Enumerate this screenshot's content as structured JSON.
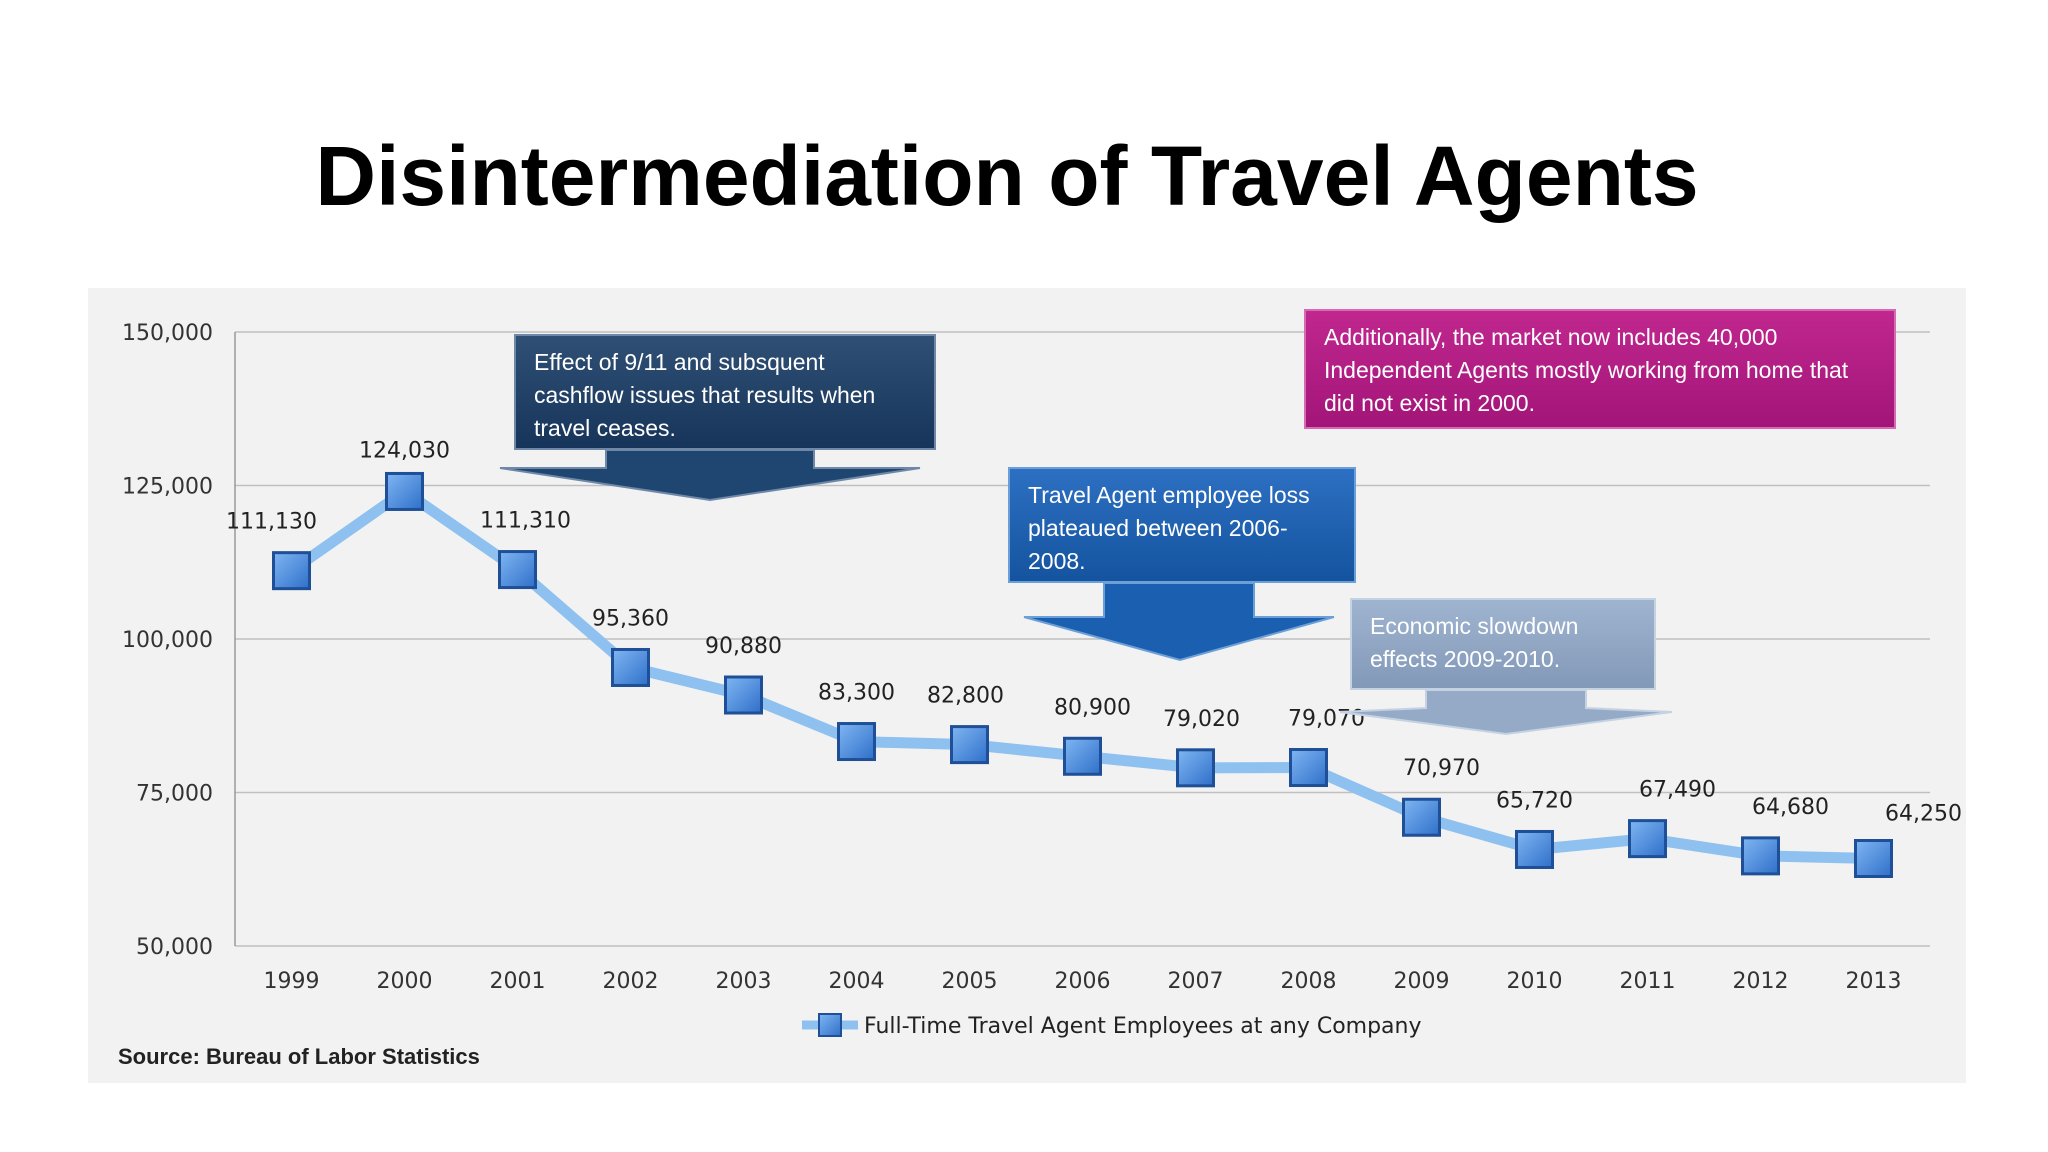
{
  "slide": {
    "title": "Disintermediation of Travel Agents",
    "source": "Source: Bureau of Labor Statistics"
  },
  "callouts": {
    "sept11": "Effect of  9/11 and subsquent cashflow issues that results when travel ceases.",
    "plateau": "Travel Agent employee loss plateaued between 2006-2008.",
    "slowdown": "Economic slowdown effects 2009-2010.",
    "independent": "Additionally, the market now includes 40,000 Independent Agents mostly working from home that did not exist in 2000."
  },
  "colors": {
    "line": "#8ec1f0",
    "marker": "#3a7fd8",
    "marker_edge": "#1f4f96",
    "grid": "#bfbfbf",
    "panel": "#f2f2f2"
  },
  "chart_data": {
    "type": "line",
    "title": "",
    "xlabel": "",
    "ylabel": "",
    "categories": [
      "1999",
      "2000",
      "2001",
      "2002",
      "2003",
      "2004",
      "2005",
      "2006",
      "2007",
      "2008",
      "2009",
      "2010",
      "2011",
      "2012",
      "2013"
    ],
    "series": [
      {
        "name": "Full-Time Travel Agent Employees at any Company",
        "values": [
          111130,
          124030,
          111310,
          95360,
          90880,
          83300,
          82800,
          80900,
          79020,
          79070,
          70970,
          65720,
          67490,
          64680,
          64250
        ],
        "labels": [
          "111,130",
          "124,030",
          "111,310",
          "95,360",
          "90,880",
          "83,300",
          "82,800",
          "80,900",
          "79,020",
          "79,070",
          "70,970",
          "65,720",
          "67,490",
          "64,680",
          "64,250"
        ]
      }
    ],
    "ylim": [
      50000,
      150000
    ],
    "yticks": [
      50000,
      75000,
      100000,
      125000,
      150000
    ],
    "ytick_labels": [
      "50,000",
      "75,000",
      "100,000",
      "125,000",
      "150,000"
    ],
    "grid": true,
    "legend_position": "bottom"
  }
}
